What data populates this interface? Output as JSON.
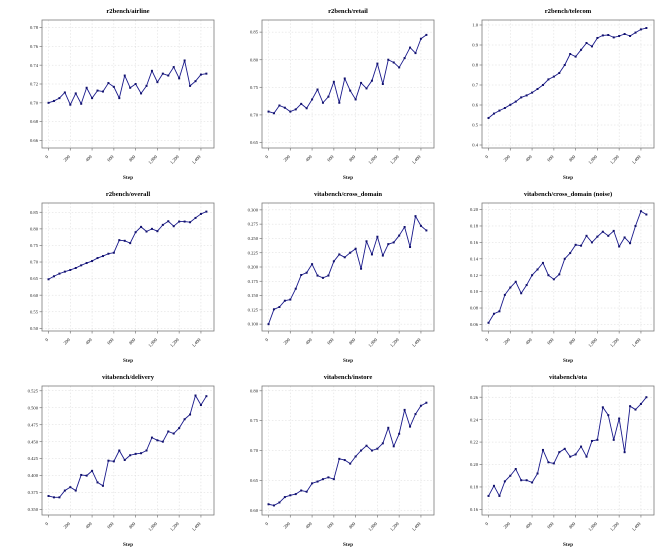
{
  "page": {
    "background": "#ffffff"
  },
  "style": {
    "line_color": "#1a1a8c",
    "marker_color": "#12126e",
    "grid_color": "#d8d8d8",
    "axis_color": "#9a9a9a",
    "spine_color": "#7a7a7a",
    "text_color": "#1a1a1a",
    "title_color": "#000000",
    "grid_dash": "1.5,1.8",
    "legend": "none"
  },
  "chart_data": [
    {
      "type": "line",
      "title": "r2bench/airline",
      "xlabel": "Step",
      "x": [
        0,
        50,
        100,
        150,
        200,
        250,
        300,
        350,
        400,
        450,
        500,
        550,
        600,
        650,
        700,
        750,
        800,
        850,
        900,
        950,
        1000,
        1050,
        1100,
        1150,
        1200,
        1250,
        1300,
        1350,
        1400,
        1450
      ],
      "values": [
        0.7,
        0.702,
        0.705,
        0.711,
        0.698,
        0.71,
        0.699,
        0.716,
        0.705,
        0.713,
        0.712,
        0.721,
        0.717,
        0.705,
        0.729,
        0.716,
        0.72,
        0.71,
        0.718,
        0.734,
        0.722,
        0.731,
        0.729,
        0.738,
        0.726,
        0.745,
        0.718,
        0.723,
        0.73,
        0.731
      ],
      "xlim": [
        -60,
        1520
      ],
      "ylim": [
        0.652,
        0.788
      ],
      "yticks": [
        0.66,
        0.68,
        0.7,
        0.72,
        0.74,
        0.76,
        0.78
      ],
      "ydecimals": 2,
      "xticks": [
        0,
        200,
        400,
        600,
        800,
        1000,
        1200,
        1400
      ],
      "xtick_labels": [
        "0",
        "200",
        "400",
        "600",
        "800",
        "1,000",
        "1,200",
        "1,400"
      ],
      "grid": true
    },
    {
      "type": "line",
      "title": "r2bench/retail",
      "xlabel": "Step",
      "x": [
        0,
        50,
        100,
        150,
        200,
        250,
        300,
        350,
        400,
        450,
        500,
        550,
        600,
        650,
        700,
        750,
        800,
        850,
        900,
        950,
        1000,
        1050,
        1100,
        1150,
        1200,
        1250,
        1300,
        1350,
        1400,
        1450
      ],
      "values": [
        0.706,
        0.703,
        0.717,
        0.713,
        0.706,
        0.71,
        0.72,
        0.712,
        0.728,
        0.746,
        0.722,
        0.733,
        0.76,
        0.722,
        0.766,
        0.744,
        0.728,
        0.758,
        0.748,
        0.762,
        0.793,
        0.756,
        0.8,
        0.795,
        0.786,
        0.803,
        0.822,
        0.812,
        0.838,
        0.845
      ],
      "xlim": [
        -60,
        1520
      ],
      "ylim": [
        0.64,
        0.872
      ],
      "yticks": [
        0.65,
        0.7,
        0.75,
        0.8,
        0.85
      ],
      "ydecimals": 2,
      "xticks": [
        0,
        200,
        400,
        600,
        800,
        1000,
        1200,
        1400
      ],
      "xtick_labels": [
        "0",
        "200",
        "400",
        "600",
        "800",
        "1,000",
        "1,200",
        "1,400"
      ],
      "grid": true
    },
    {
      "type": "line",
      "title": "r2bench/telecom",
      "xlabel": "Step",
      "x": [
        0,
        50,
        100,
        150,
        200,
        250,
        300,
        350,
        400,
        450,
        500,
        550,
        600,
        650,
        700,
        750,
        800,
        850,
        900,
        950,
        1000,
        1050,
        1100,
        1150,
        1200,
        1250,
        1300,
        1350,
        1400,
        1450
      ],
      "values": [
        0.535,
        0.557,
        0.572,
        0.585,
        0.601,
        0.617,
        0.638,
        0.648,
        0.662,
        0.68,
        0.7,
        0.728,
        0.742,
        0.76,
        0.8,
        0.855,
        0.842,
        0.876,
        0.91,
        0.893,
        0.935,
        0.948,
        0.95,
        0.938,
        0.945,
        0.955,
        0.945,
        0.962,
        0.978,
        0.985
      ],
      "xlim": [
        -60,
        1520
      ],
      "ylim": [
        0.385,
        1.025
      ],
      "yticks": [
        0.4,
        0.5,
        0.6,
        0.7,
        0.8,
        0.9,
        1.0
      ],
      "ydecimals": 1,
      "xticks": [
        0,
        200,
        400,
        600,
        800,
        1000,
        1200,
        1400
      ],
      "xtick_labels": [
        "0",
        "200",
        "400",
        "600",
        "800",
        "1,000",
        "1,200",
        "1,400"
      ],
      "grid": true
    },
    {
      "type": "line",
      "title": "r2bench/overall",
      "xlabel": "Step",
      "x": [
        0,
        50,
        100,
        150,
        200,
        250,
        300,
        350,
        400,
        450,
        500,
        550,
        600,
        650,
        700,
        750,
        800,
        850,
        900,
        950,
        1000,
        1050,
        1100,
        1150,
        1200,
        1250,
        1300,
        1350,
        1400,
        1450
      ],
      "values": [
        0.648,
        0.657,
        0.665,
        0.671,
        0.676,
        0.682,
        0.69,
        0.697,
        0.703,
        0.712,
        0.718,
        0.725,
        0.728,
        0.766,
        0.764,
        0.757,
        0.79,
        0.806,
        0.792,
        0.8,
        0.793,
        0.812,
        0.823,
        0.808,
        0.822,
        0.822,
        0.82,
        0.833,
        0.845,
        0.852
      ],
      "xlim": [
        -60,
        1520
      ],
      "ylim": [
        0.492,
        0.878
      ],
      "yticks": [
        0.5,
        0.55,
        0.6,
        0.65,
        0.7,
        0.75,
        0.8,
        0.85
      ],
      "ydecimals": 2,
      "xticks": [
        0,
        200,
        400,
        600,
        800,
        1000,
        1200,
        1400
      ],
      "xtick_labels": [
        "0",
        "200",
        "400",
        "600",
        "800",
        "1,000",
        "1,200",
        "1,400"
      ],
      "grid": true
    },
    {
      "type": "line",
      "title": "vitabench/cross_domain",
      "xlabel": "Step",
      "x": [
        0,
        50,
        100,
        150,
        200,
        250,
        300,
        350,
        400,
        450,
        500,
        550,
        600,
        650,
        700,
        750,
        800,
        850,
        900,
        950,
        1000,
        1050,
        1100,
        1150,
        1200,
        1250,
        1300,
        1350,
        1400,
        1450
      ],
      "values": [
        0.1,
        0.126,
        0.13,
        0.141,
        0.143,
        0.162,
        0.186,
        0.19,
        0.205,
        0.185,
        0.181,
        0.185,
        0.21,
        0.222,
        0.217,
        0.225,
        0.232,
        0.197,
        0.245,
        0.222,
        0.253,
        0.22,
        0.24,
        0.243,
        0.255,
        0.27,
        0.235,
        0.289,
        0.272,
        0.264
      ],
      "xlim": [
        -60,
        1520
      ],
      "ylim": [
        0.088,
        0.312
      ],
      "yticks": [
        0.1,
        0.125,
        0.15,
        0.175,
        0.2,
        0.225,
        0.25,
        0.275,
        0.3
      ],
      "ydecimals": 3,
      "xticks": [
        0,
        200,
        400,
        600,
        800,
        1000,
        1200,
        1400
      ],
      "xtick_labels": [
        "0",
        "200",
        "400",
        "600",
        "800",
        "1,000",
        "1,200",
        "1,400"
      ],
      "grid": true
    },
    {
      "type": "line",
      "title": "vitabench/cross_domain (noise)",
      "xlabel": "Step",
      "x": [
        0,
        50,
        100,
        150,
        200,
        250,
        300,
        350,
        400,
        450,
        500,
        550,
        600,
        650,
        700,
        750,
        800,
        850,
        900,
        950,
        1000,
        1050,
        1100,
        1150,
        1200,
        1250,
        1300,
        1350,
        1400,
        1450
      ],
      "values": [
        0.062,
        0.073,
        0.076,
        0.096,
        0.105,
        0.112,
        0.098,
        0.108,
        0.12,
        0.127,
        0.135,
        0.12,
        0.115,
        0.121,
        0.14,
        0.147,
        0.157,
        0.156,
        0.168,
        0.16,
        0.167,
        0.173,
        0.168,
        0.174,
        0.155,
        0.166,
        0.159,
        0.18,
        0.198,
        0.194
      ],
      "xlim": [
        -60,
        1520
      ],
      "ylim": [
        0.052,
        0.208
      ],
      "yticks": [
        0.06,
        0.08,
        0.1,
        0.12,
        0.14,
        0.16,
        0.18,
        0.2
      ],
      "ydecimals": 2,
      "xticks": [
        0,
        200,
        400,
        600,
        800,
        1000,
        1200,
        1400
      ],
      "xtick_labels": [
        "0",
        "200",
        "400",
        "600",
        "800",
        "1,000",
        "1,200",
        "1,400"
      ],
      "grid": true
    },
    {
      "type": "line",
      "title": "vitabench/delivery",
      "xlabel": "Step",
      "x": [
        0,
        50,
        100,
        150,
        200,
        250,
        300,
        350,
        400,
        450,
        500,
        550,
        600,
        650,
        700,
        750,
        800,
        850,
        900,
        950,
        1000,
        1050,
        1100,
        1150,
        1200,
        1250,
        1300,
        1350,
        1400,
        1450
      ],
      "values": [
        0.37,
        0.368,
        0.368,
        0.378,
        0.383,
        0.378,
        0.401,
        0.4,
        0.407,
        0.39,
        0.385,
        0.422,
        0.421,
        0.437,
        0.423,
        0.43,
        0.432,
        0.433,
        0.437,
        0.456,
        0.452,
        0.45,
        0.465,
        0.462,
        0.47,
        0.483,
        0.49,
        0.518,
        0.504,
        0.517
      ],
      "xlim": [
        -60,
        1520
      ],
      "ylim": [
        0.342,
        0.532
      ],
      "yticks": [
        0.35,
        0.375,
        0.4,
        0.425,
        0.45,
        0.475,
        0.5,
        0.525
      ],
      "ydecimals": 3,
      "xticks": [
        0,
        200,
        400,
        600,
        800,
        1000,
        1200,
        1400
      ],
      "xtick_labels": [
        "0",
        "200",
        "400",
        "600",
        "800",
        "1,000",
        "1,200",
        "1,400"
      ],
      "grid": true
    },
    {
      "type": "line",
      "title": "vitabench/instore",
      "xlabel": "Step",
      "x": [
        0,
        50,
        100,
        150,
        200,
        250,
        300,
        350,
        400,
        450,
        500,
        550,
        600,
        650,
        700,
        750,
        800,
        850,
        900,
        950,
        1000,
        1050,
        1100,
        1150,
        1200,
        1250,
        1300,
        1350,
        1400,
        1450
      ],
      "values": [
        0.61,
        0.608,
        0.613,
        0.622,
        0.625,
        0.627,
        0.633,
        0.631,
        0.645,
        0.648,
        0.652,
        0.655,
        0.652,
        0.686,
        0.684,
        0.678,
        0.69,
        0.7,
        0.708,
        0.7,
        0.703,
        0.712,
        0.738,
        0.707,
        0.728,
        0.768,
        0.74,
        0.761,
        0.775,
        0.78
      ],
      "xlim": [
        -60,
        1520
      ],
      "ylim": [
        0.592,
        0.808
      ],
      "yticks": [
        0.6,
        0.65,
        0.7,
        0.75,
        0.8
      ],
      "ydecimals": 2,
      "xticks": [
        0,
        200,
        400,
        600,
        800,
        1000,
        1200,
        1400
      ],
      "xtick_labels": [
        "0",
        "200",
        "400",
        "600",
        "800",
        "1,000",
        "1,200",
        "1,400"
      ],
      "grid": true
    },
    {
      "type": "line",
      "title": "vitabench/ota",
      "xlabel": "Step",
      "x": [
        0,
        50,
        100,
        150,
        200,
        250,
        300,
        350,
        400,
        450,
        500,
        550,
        600,
        650,
        700,
        750,
        800,
        850,
        900,
        950,
        1000,
        1050,
        1100,
        1150,
        1200,
        1250,
        1300,
        1350,
        1400,
        1450
      ],
      "values": [
        0.172,
        0.181,
        0.172,
        0.185,
        0.19,
        0.196,
        0.186,
        0.186,
        0.184,
        0.192,
        0.213,
        0.202,
        0.201,
        0.211,
        0.214,
        0.207,
        0.209,
        0.216,
        0.207,
        0.221,
        0.222,
        0.251,
        0.244,
        0.222,
        0.241,
        0.211,
        0.252,
        0.249,
        0.254,
        0.26
      ],
      "xlim": [
        -60,
        1520
      ],
      "ylim": [
        0.155,
        0.27
      ],
      "yticks": [
        0.16,
        0.18,
        0.2,
        0.22,
        0.24,
        0.26
      ],
      "ydecimals": 2,
      "xticks": [
        0,
        200,
        400,
        600,
        800,
        1000,
        1200,
        1400
      ],
      "xtick_labels": [
        "0",
        "200",
        "400",
        "600",
        "800",
        "1,000",
        "1,200",
        "1,400"
      ],
      "grid": true
    }
  ]
}
